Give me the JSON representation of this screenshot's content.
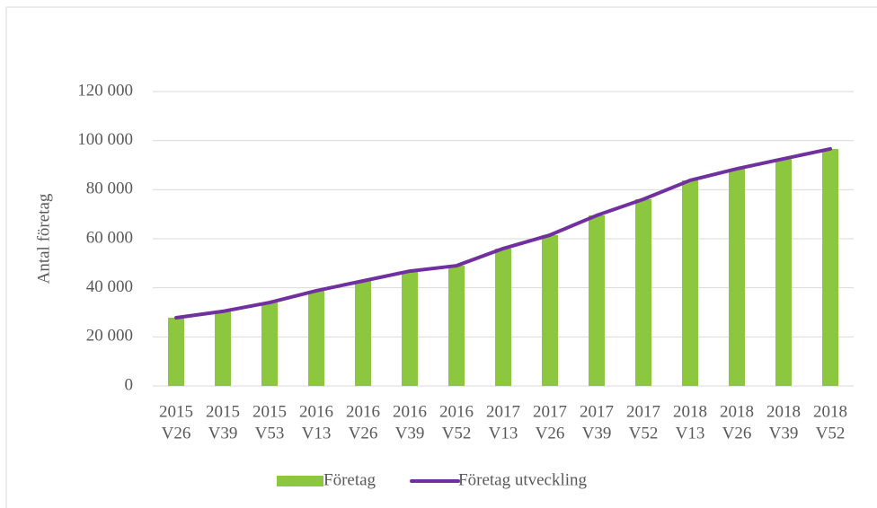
{
  "chart_data": {
    "type": "bar",
    "y_label": "Antal företag",
    "categories": [
      [
        "2015",
        "V26"
      ],
      [
        "2015",
        "V39"
      ],
      [
        "2015",
        "V53"
      ],
      [
        "2016",
        "V13"
      ],
      [
        "2016",
        "V26"
      ],
      [
        "2016",
        "V39"
      ],
      [
        "2016",
        "V52"
      ],
      [
        "2017",
        "V13"
      ],
      [
        "2017",
        "V26"
      ],
      [
        "2017",
        "V39"
      ],
      [
        "2017",
        "V52"
      ],
      [
        "2018",
        "V13"
      ],
      [
        "2018",
        "V26"
      ],
      [
        "2018",
        "V39"
      ],
      [
        "2018",
        "V52"
      ]
    ],
    "series": [
      {
        "name": "Företag",
        "type": "bar",
        "color": "#8dc63f",
        "values": [
          27800,
          30400,
          34000,
          38800,
          42800,
          46800,
          49000,
          56000,
          61500,
          69500,
          76100,
          83800,
          88500,
          92600,
          96600
        ]
      },
      {
        "name": "Företag utveckling",
        "type": "line",
        "color": "#7030a0",
        "values": [
          27800,
          30400,
          34000,
          38800,
          42800,
          46800,
          49000,
          56000,
          61500,
          69500,
          76100,
          83800,
          88500,
          92600,
          96600
        ]
      }
    ],
    "ylim": [
      0,
      120000
    ],
    "yticks": [
      0,
      {
        "value": 20000,
        "label": "20 000"
      },
      {
        "value": 40000,
        "label": "40 000"
      },
      {
        "value": 60000,
        "label": "60 000"
      },
      {
        "value": 80000,
        "label": "80 000"
      },
      {
        "value": 100000,
        "label": "100 000"
      },
      {
        "value": 120000,
        "label": "120 000"
      }
    ],
    "grid": true,
    "legend": "bottom"
  }
}
